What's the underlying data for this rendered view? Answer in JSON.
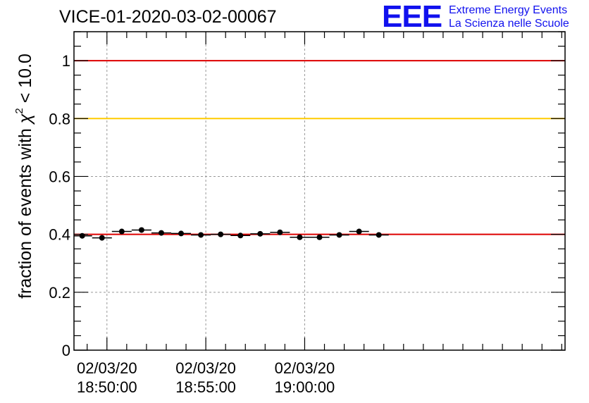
{
  "title": "VICE-01-2020-03-02-00067",
  "logo": {
    "mark": "EEE",
    "line1": "Extreme Energy Events",
    "line2": "La Scienza nelle Scuole"
  },
  "chart_data": {
    "type": "scatter",
    "title": "VICE-01-2020-03-02-00067",
    "xlabel": "",
    "ylabel": "fraction of events with χ² < 10.0",
    "ylabel_parts": {
      "pre": "fraction of events with ",
      "chi": "χ",
      "sup": "2",
      "post": " < 10.0"
    },
    "ylim": [
      0,
      1.1
    ],
    "yticks": [
      0,
      0.2,
      0.4,
      0.6,
      0.8,
      1
    ],
    "ytick_labels": [
      "0",
      "0.2",
      "0.4",
      "0.6",
      "0.8",
      "1"
    ],
    "xticks": [
      {
        "line1": "02/03/20",
        "line2": "18:50:00"
      },
      {
        "line1": "02/03/20",
        "line2": "18:55:00"
      },
      {
        "line1": "02/03/20",
        "line2": "19:00:00"
      }
    ],
    "grid": true,
    "reference_lines": [
      {
        "value": 1.0,
        "color": "#dd0000"
      },
      {
        "value": 0.8,
        "color": "#ffcc00"
      },
      {
        "value": 0.4,
        "color": "#dd0000"
      }
    ],
    "x_unit": "seconds relative to 02/03/20 18:50:00",
    "xlim": [
      -100,
      1390
    ],
    "points": [
      {
        "x": -75,
        "y": 0.395
      },
      {
        "x": -15,
        "y": 0.388
      },
      {
        "x": 45,
        "y": 0.41
      },
      {
        "x": 105,
        "y": 0.415
      },
      {
        "x": 165,
        "y": 0.405
      },
      {
        "x": 225,
        "y": 0.403
      },
      {
        "x": 285,
        "y": 0.398
      },
      {
        "x": 345,
        "y": 0.4
      },
      {
        "x": 405,
        "y": 0.396
      },
      {
        "x": 465,
        "y": 0.402
      },
      {
        "x": 525,
        "y": 0.407
      },
      {
        "x": 585,
        "y": 0.39
      },
      {
        "x": 645,
        "y": 0.39
      },
      {
        "x": 705,
        "y": 0.398
      },
      {
        "x": 765,
        "y": 0.41
      },
      {
        "x": 825,
        "y": 0.398
      }
    ],
    "bin_half_width": 30
  }
}
